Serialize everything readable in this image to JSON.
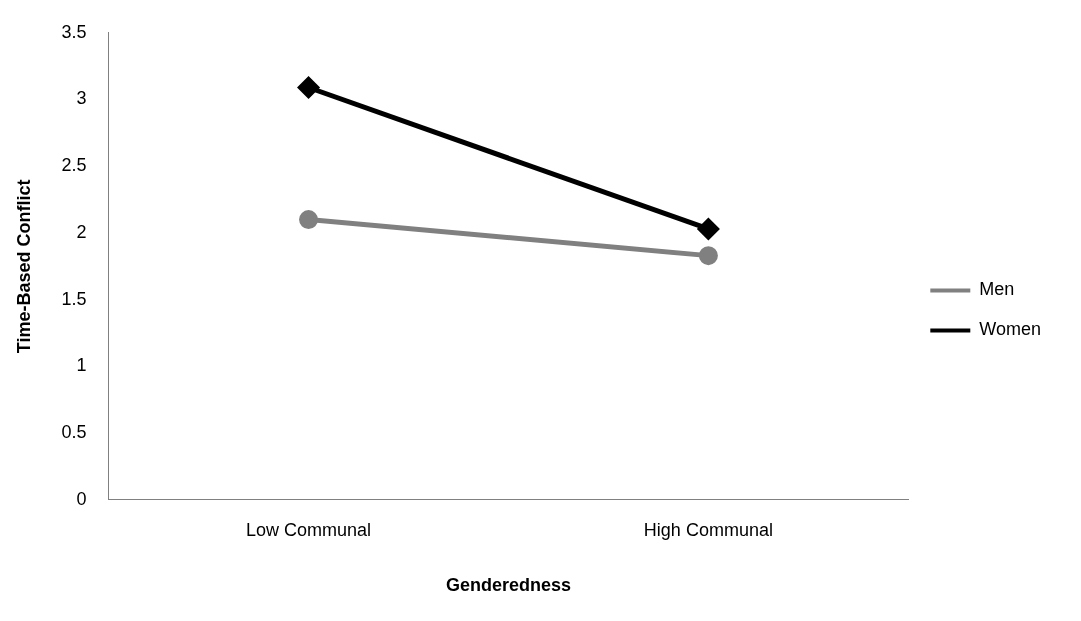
{
  "chart_data": {
    "type": "line",
    "xlabel": "Genderedness",
    "ylabel": "Time-Based Conflict",
    "categories": [
      "Low Communal",
      "High Communal"
    ],
    "series": [
      {
        "name": "Men",
        "color": "#808080",
        "values": [
          2.1,
          1.83
        ],
        "marker": "circle"
      },
      {
        "name": "Women",
        "color": "#000000",
        "values": [
          3.09,
          2.03
        ],
        "marker": "diamond"
      }
    ],
    "ylim": [
      0,
      3.5
    ],
    "yticks": [
      0,
      0.5,
      1,
      1.5,
      2,
      2.5,
      3,
      3.5
    ],
    "grid": false,
    "legend": "right",
    "line_style": "solid"
  }
}
